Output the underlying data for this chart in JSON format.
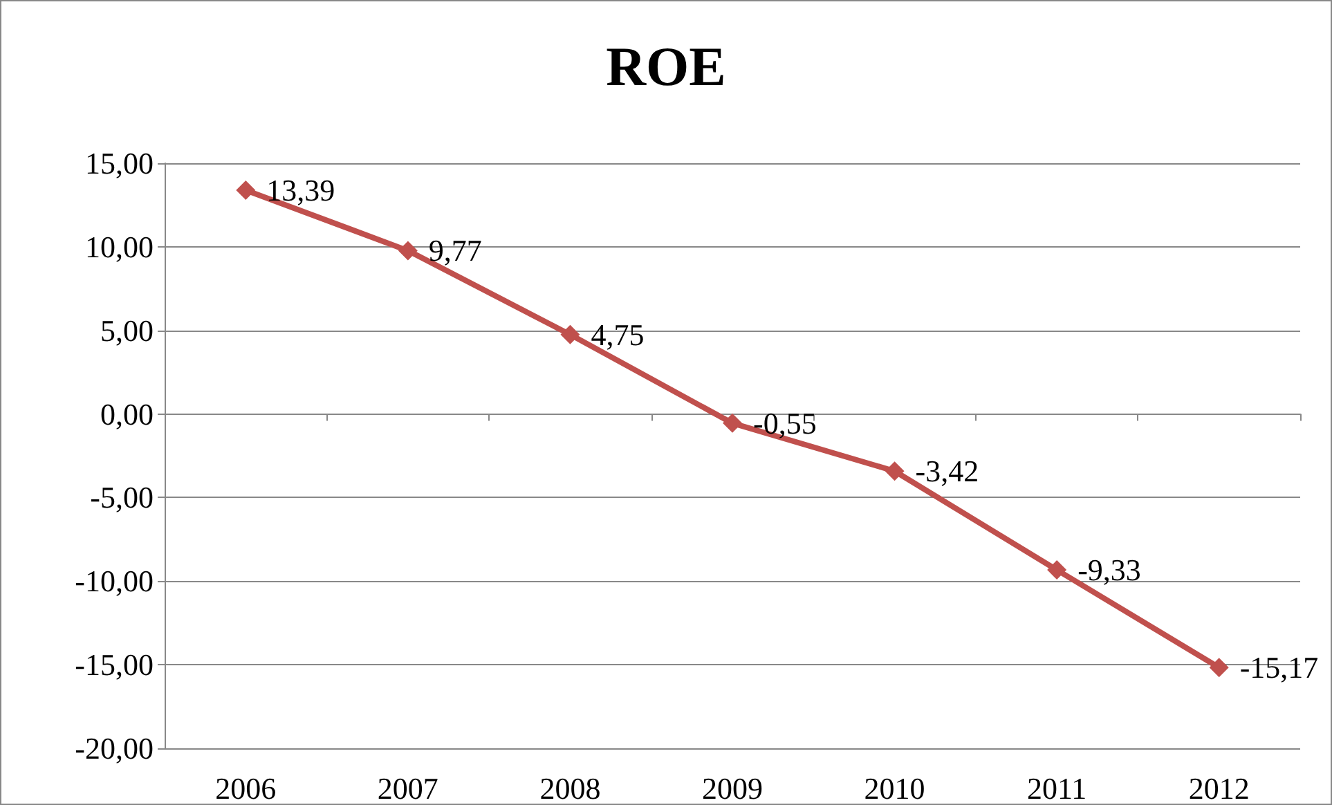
{
  "chart_data": {
    "type": "line",
    "title": "ROE",
    "categories": [
      "2006",
      "2007",
      "2008",
      "2009",
      "2010",
      "2011",
      "2012"
    ],
    "series": [
      {
        "color": "#c0504d",
        "values": [
          13.39,
          9.77,
          4.75,
          -0.55,
          -3.42,
          -9.33,
          -15.17
        ],
        "value_labels": [
          "13,39",
          "9,77",
          "4,75",
          "-0,55",
          "-3,42",
          "-9,33",
          "-15,17"
        ]
      }
    ],
    "ylim": [
      -20,
      15
    ],
    "yticks": [
      {
        "value": -20,
        "label": "-20,00"
      },
      {
        "value": -15,
        "label": "-15,00"
      },
      {
        "value": -10,
        "label": "-10,00"
      },
      {
        "value": -5,
        "label": "-5,00"
      },
      {
        "value": 0,
        "label": "0,00"
      },
      {
        "value": 5,
        "label": "5,00"
      },
      {
        "value": 10,
        "label": "10,00"
      },
      {
        "value": 15,
        "label": "15,00"
      }
    ],
    "grid": "y",
    "marker": "diamond",
    "line_style": "solid"
  }
}
